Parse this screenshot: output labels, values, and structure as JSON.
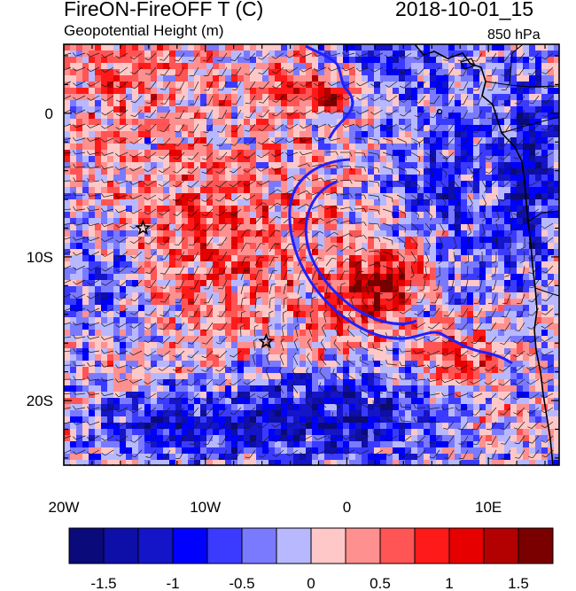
{
  "header": {
    "title_left": "FireON-FireOFF T (C)",
    "title_right": "2018-10-01_15",
    "subtitle_left": "Geopotential Height (m)",
    "subtitle_right": "850 hPa"
  },
  "chart_data": {
    "type": "heatmap",
    "title": "FireON-FireOFF T (C)",
    "date": "2018-10-01_15",
    "overlay": "Geopotential Height (m)",
    "level": "850 hPa",
    "xlim": [
      -20,
      15
    ],
    "ylim": [
      -24.5,
      4.8
    ],
    "x_ticks": [
      {
        "value": -20,
        "label": "20W"
      },
      {
        "value": -10,
        "label": "10W"
      },
      {
        "value": 0,
        "label": "0"
      },
      {
        "value": 10,
        "label": "10E"
      }
    ],
    "y_ticks": [
      {
        "value": 0,
        "label": "0"
      },
      {
        "value": -10,
        "label": "10S"
      },
      {
        "value": -20,
        "label": "20S"
      }
    ],
    "colorbar": {
      "levels": [
        -1.75,
        -1.5,
        -1.25,
        -1,
        -0.75,
        -0.5,
        -0.25,
        0,
        0.25,
        0.5,
        0.75,
        1,
        1.25,
        1.5,
        1.75
      ],
      "labels": [
        {
          "value": -1.5,
          "label": "-1.5"
        },
        {
          "value": -1,
          "label": "-1"
        },
        {
          "value": -0.5,
          "label": "-0.5"
        },
        {
          "value": 0,
          "label": "0"
        },
        {
          "value": 0.5,
          "label": "0.5"
        },
        {
          "value": 1,
          "label": "1"
        },
        {
          "value": 1.5,
          "label": "1.5"
        }
      ],
      "colors": [
        "#0a0a7a",
        "#0e0ea8",
        "#1414c8",
        "#0000ff",
        "#3b3bff",
        "#7a7aff",
        "#b8b8ff",
        "#ffc8c8",
        "#ff9090",
        "#ff5555",
        "#ff1a1a",
        "#e60000",
        "#b30000",
        "#7a0000"
      ]
    },
    "features": {
      "warm_core": {
        "lon": 2.5,
        "lat": -12,
        "value": 1.4
      },
      "warm_west": {
        "lon": -9,
        "lat": -9,
        "value": 0.7
      },
      "cold_south": {
        "lon": -2,
        "lat": -21,
        "value": -1.2
      },
      "cold_east": {
        "lon": 8,
        "lat": -6,
        "value": -1.0
      }
    },
    "markers": [
      {
        "lon": -14.4,
        "lat": -8.0
      },
      {
        "lon": -5.7,
        "lat": -15.9
      }
    ],
    "contour_color": "#2020ff"
  }
}
